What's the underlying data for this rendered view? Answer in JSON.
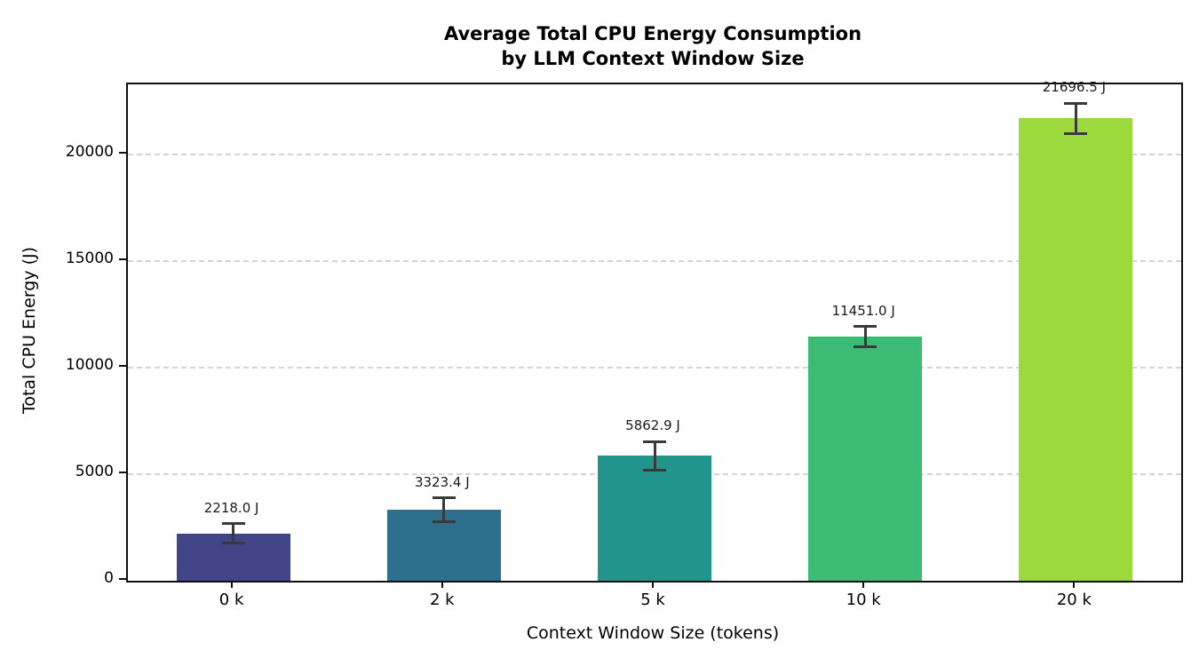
{
  "chart_data": {
    "type": "bar",
    "title": "Average Total CPU Energy Consumption\nby LLM Context Window Size",
    "title_line1": "Average Total CPU Energy Consumption",
    "title_line2": "by LLM Context Window Size",
    "xlabel": "Context Window Size (tokens)",
    "ylabel": "Total CPU Energy (J)",
    "categories": [
      "0 k",
      "2 k",
      "5 k",
      "10 k",
      "20 k"
    ],
    "values": [
      2218.0,
      3323.4,
      5862.9,
      11451.0,
      21696.5
    ],
    "errors": [
      450,
      570,
      680,
      480,
      720
    ],
    "bar_labels": [
      "2218.0 J",
      "3323.4 J",
      "5862.9 J",
      "11451.0 J",
      "21696.5 J"
    ],
    "bar_colors": [
      "#414487",
      "#2e6f8e",
      "#21948b",
      "#3cbb74",
      "#9bd93c"
    ],
    "yticks": [
      0,
      5000,
      10000,
      15000,
      20000
    ],
    "ylim": [
      0,
      23300
    ],
    "grid": "dashed-horizontal",
    "legend": "none",
    "style": {
      "grid_color": "#d5d5d5",
      "spine_color": "#0f0f0f",
      "error_bar_color": "#3a3a3a",
      "value_label_color": "#1a1a1a",
      "background": "#ffffff"
    }
  }
}
